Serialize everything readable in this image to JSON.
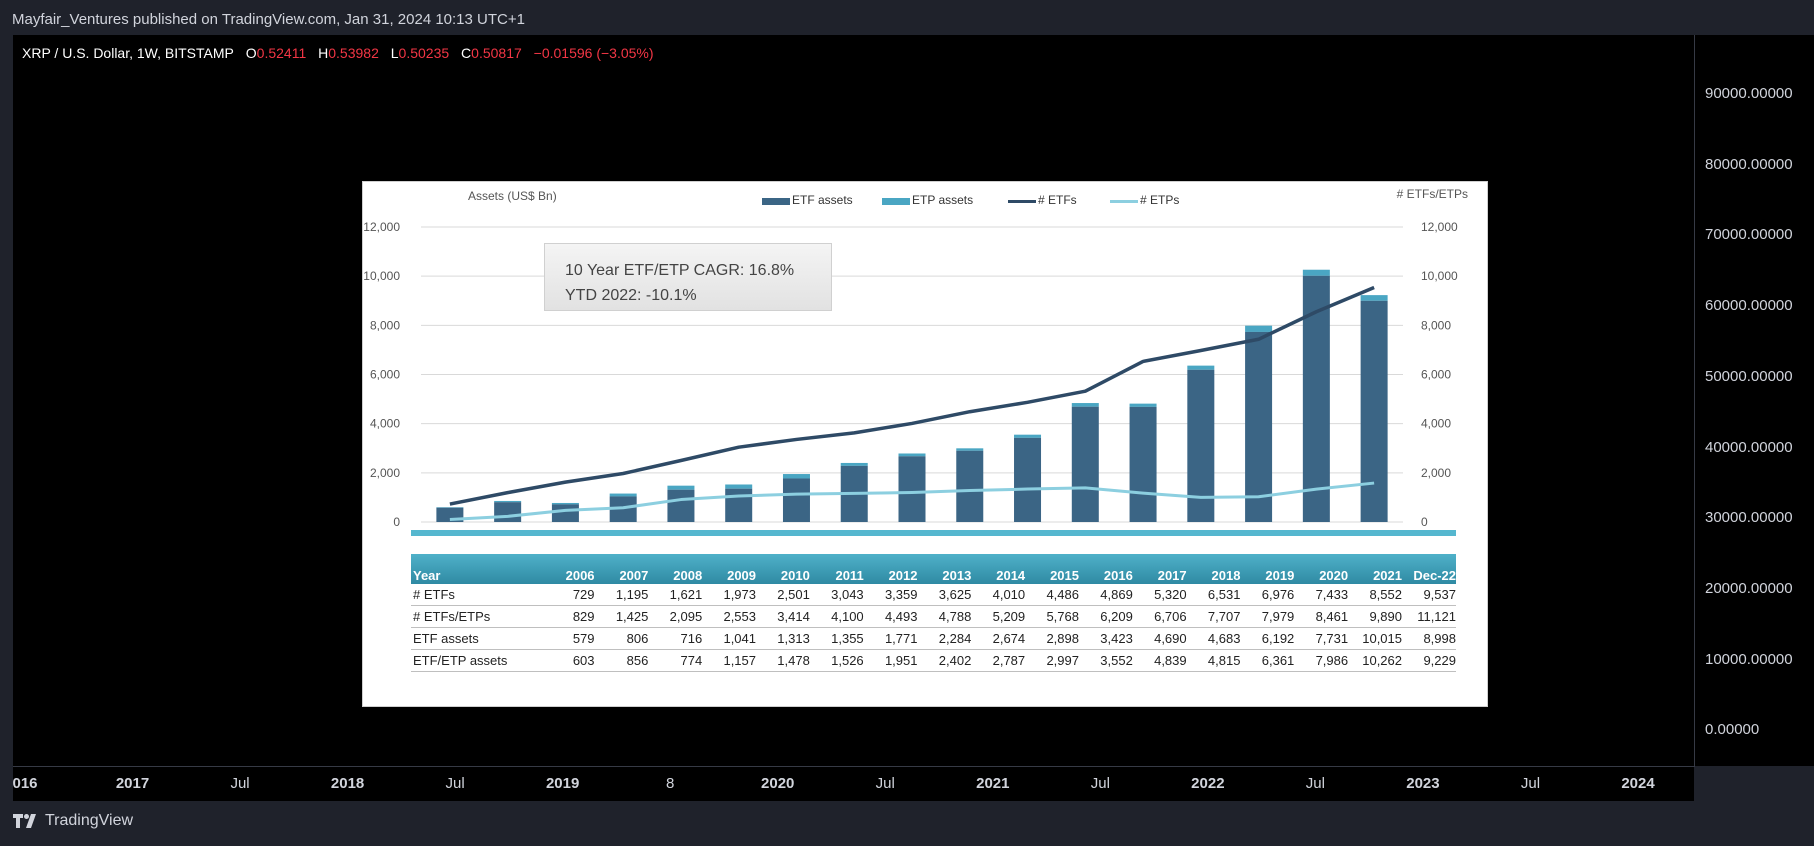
{
  "header": {
    "published": "Mayfair_Ventures published on TradingView.com, Jan 31, 2024 10:13 UTC+1"
  },
  "legend": {
    "symbol": "XRP / U.S. Dollar, 1W, BITSTAMP",
    "open_label": "O",
    "open": "0.52411",
    "high_label": "H",
    "high": "0.53982",
    "low_label": "L",
    "low": "0.50235",
    "close_label": "C",
    "close": "0.50817",
    "change": "−0.01596 (−3.05%)"
  },
  "price_axis": [
    "90000.00000",
    "80000.00000",
    "70000.00000",
    "60000.00000",
    "50000.00000",
    "40000.00000",
    "30000.00000",
    "20000.00000",
    "10000.00000",
    "0.00000"
  ],
  "time_axis": [
    {
      "label": "016",
      "major": true
    },
    {
      "label": "2017",
      "major": true
    },
    {
      "label": "Jul",
      "major": false
    },
    {
      "label": "2018",
      "major": true
    },
    {
      "label": "Jul",
      "major": false
    },
    {
      "label": "2019",
      "major": true
    },
    {
      "label": "8",
      "major": false
    },
    {
      "label": "2020",
      "major": true
    },
    {
      "label": "Jul",
      "major": false
    },
    {
      "label": "2021",
      "major": true
    },
    {
      "label": "Jul",
      "major": false
    },
    {
      "label": "2022",
      "major": true
    },
    {
      "label": "Jul",
      "major": false
    },
    {
      "label": "2023",
      "major": true
    },
    {
      "label": "Jul",
      "major": false
    },
    {
      "label": "2024",
      "major": true
    }
  ],
  "footer": {
    "brand": "TradingView"
  },
  "colors": {
    "etf": "#3b6585",
    "etp": "#4aa6c3",
    "etf_line": "#2e4a66",
    "etp_line": "#8ccfe0",
    "negative": "#f23645"
  },
  "callout": {
    "line1": "10 Year ETF/ETP CAGR: 16.8%",
    "line2": "YTD 2022: -10.1%"
  },
  "chart_data": {
    "type": "bar",
    "title": "",
    "ylabel": "Assets (US$ Bn)",
    "y2label": "# ETFs/ETPs",
    "ylim": [
      0,
      12000
    ],
    "y2lim": [
      0,
      12000
    ],
    "yticks": [
      "0",
      "2,000",
      "4,000",
      "6,000",
      "8,000",
      "10,000",
      "12,000"
    ],
    "legend": [
      "ETF assets",
      "ETP assets",
      "# ETFs",
      "# ETPs"
    ],
    "categories": [
      "2006",
      "2007",
      "2008",
      "2009",
      "2010",
      "2011",
      "2012",
      "2013",
      "2014",
      "2015",
      "2016",
      "2017",
      "2018",
      "2019",
      "2020",
      "2021",
      "Dec-22"
    ],
    "series": [
      {
        "name": "ETF assets",
        "kind": "bar",
        "values": [
          579,
          806,
          716,
          1041,
          1313,
          1355,
          1771,
          2284,
          2674,
          2898,
          3423,
          4690,
          4683,
          6192,
          7731,
          10015,
          8998
        ]
      },
      {
        "name": "ETF/ETP assets",
        "kind": "bar-total",
        "values": [
          603,
          856,
          774,
          1157,
          1478,
          1526,
          1951,
          2402,
          2787,
          2997,
          3552,
          4839,
          4815,
          6361,
          7986,
          10262,
          9229
        ]
      },
      {
        "name": "# ETFs",
        "kind": "line",
        "values": [
          729,
          1195,
          1621,
          1973,
          2501,
          3043,
          3359,
          3625,
          4010,
          4486,
          4869,
          5320,
          6531,
          6976,
          7433,
          8552,
          9537
        ]
      },
      {
        "name": "# ETPs",
        "kind": "line",
        "values": [
          100,
          230,
          474,
          580,
          913,
          1057,
          1134,
          1163,
          1199,
          1282,
          1340,
          1386,
          1176,
          1003,
          1028,
          1338,
          1584
        ]
      },
      {
        "name": "# ETFs/ETPs",
        "kind": "table",
        "values": [
          829,
          1425,
          2095,
          2553,
          3414,
          4100,
          4493,
          4788,
          5209,
          5768,
          6209,
          6706,
          7707,
          7979,
          8461,
          9890,
          11121
        ]
      }
    ],
    "table": {
      "header": [
        "Year",
        "2006",
        "2007",
        "2008",
        "2009",
        "2010",
        "2011",
        "2012",
        "2013",
        "2014",
        "2015",
        "2016",
        "2017",
        "2018",
        "2019",
        "2020",
        "2021",
        "Dec-22"
      ],
      "rows": [
        [
          "# ETFs",
          "729",
          "1,195",
          "1,621",
          "1,973",
          "2,501",
          "3,043",
          "3,359",
          "3,625",
          "4,010",
          "4,486",
          "4,869",
          "5,320",
          "6,531",
          "6,976",
          "7,433",
          "8,552",
          "9,537"
        ],
        [
          "# ETFs/ETPs",
          "829",
          "1,425",
          "2,095",
          "2,553",
          "3,414",
          "4,100",
          "4,493",
          "4,788",
          "5,209",
          "5,768",
          "6,209",
          "6,706",
          "7,707",
          "7,979",
          "8,461",
          "9,890",
          "11,121"
        ],
        [
          "ETF assets",
          "579",
          "806",
          "716",
          "1,041",
          "1,313",
          "1,355",
          "1,771",
          "2,284",
          "2,674",
          "2,898",
          "3,423",
          "4,690",
          "4,683",
          "6,192",
          "7,731",
          "10,015",
          "8,998"
        ],
        [
          "ETF/ETP assets",
          "603",
          "856",
          "774",
          "1,157",
          "1,478",
          "1,526",
          "1,951",
          "2,402",
          "2,787",
          "2,997",
          "3,552",
          "4,839",
          "4,815",
          "6,361",
          "7,986",
          "10,262",
          "9,229"
        ]
      ]
    }
  }
}
